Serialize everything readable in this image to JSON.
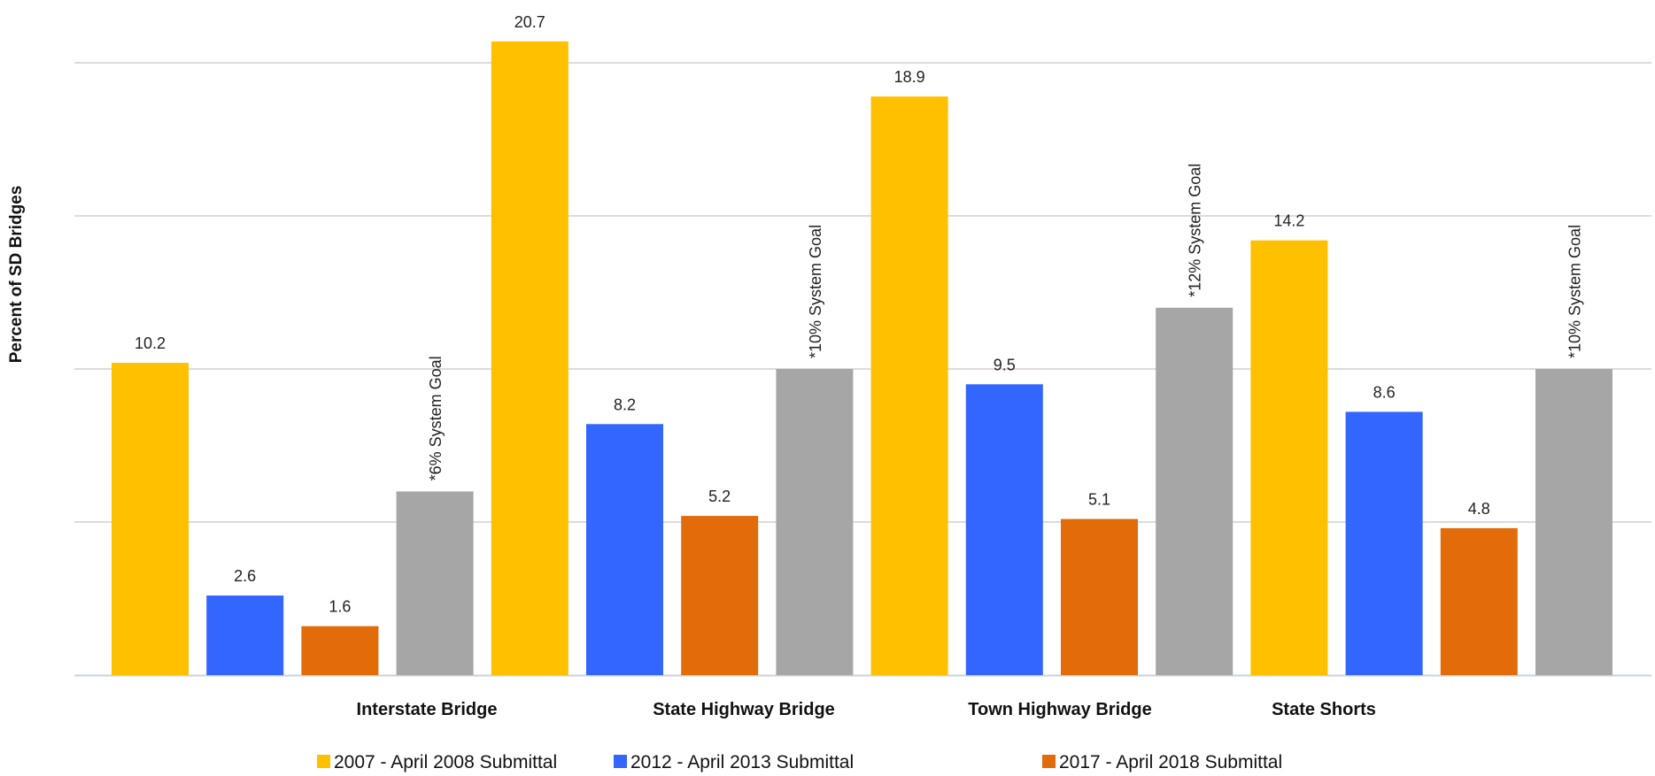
{
  "chart_data": {
    "type": "bar",
    "ylabel": "Percent of SD Bridges",
    "ylim": [
      0,
      22
    ],
    "y_gridlines": [
      5,
      10,
      15,
      20
    ],
    "grid": true,
    "legend_position": "bottom",
    "categories": [
      "Interstate Bridge",
      "State Highway Bridge",
      "Town Highway Bridge",
      "State Shorts"
    ],
    "series": [
      {
        "name": "2007 - April 2008 Submittal",
        "color": "#FFC000",
        "values": [
          10.2,
          20.7,
          18.9,
          14.2
        ]
      },
      {
        "name": "2012 - April 2013 Submittal",
        "color": "#3366FF",
        "values": [
          2.6,
          8.2,
          9.5,
          8.6
        ]
      },
      {
        "name": "2017 - April 2018 Submittal",
        "color": "#E26B0A",
        "values": [
          1.6,
          5.2,
          5.1,
          4.8
        ]
      }
    ],
    "goals": {
      "color": "#A6A6A6",
      "values": [
        6,
        10,
        12,
        10
      ],
      "labels": [
        "*6%  System Goal",
        "*10%  System Goal",
        "*12%  System Goal",
        "*10%  System Goal"
      ]
    }
  }
}
